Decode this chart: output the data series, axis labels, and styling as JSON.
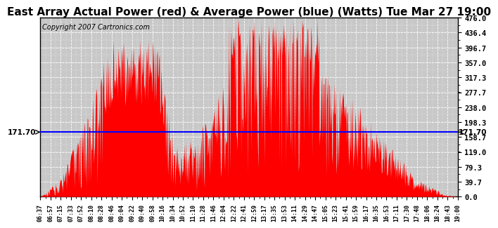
{
  "title": "East Array Actual Power (red) & Average Power (blue) (Watts) Tue Mar 27 19:00",
  "copyright": "Copyright 2007 Cartronics.com",
  "avg_power": 171.7,
  "ymin": 0.0,
  "ymax": 476.0,
  "yticks": [
    0.0,
    39.7,
    79.3,
    119.0,
    158.7,
    198.3,
    238.0,
    277.7,
    317.3,
    357.0,
    396.7,
    436.4,
    476.0
  ],
  "xtick_labels": [
    "06:37",
    "06:57",
    "07:15",
    "07:33",
    "07:52",
    "08:10",
    "08:28",
    "08:46",
    "09:04",
    "09:22",
    "09:40",
    "09:58",
    "10:16",
    "10:34",
    "10:52",
    "11:10",
    "11:28",
    "11:46",
    "12:04",
    "12:22",
    "12:41",
    "12:59",
    "13:17",
    "13:35",
    "13:53",
    "14:11",
    "14:29",
    "14:47",
    "15:05",
    "15:23",
    "15:41",
    "15:59",
    "16:17",
    "16:35",
    "16:53",
    "17:11",
    "17:30",
    "17:48",
    "18:06",
    "18:24",
    "18:43",
    "19:00"
  ],
  "fill_color": "#FF0000",
  "line_color": "#0000FF",
  "plot_bg_color": "#C8C8C8",
  "title_fontsize": 11,
  "copyright_fontsize": 7,
  "avg_label": "171.70",
  "avg_label_fontsize": 7.5
}
